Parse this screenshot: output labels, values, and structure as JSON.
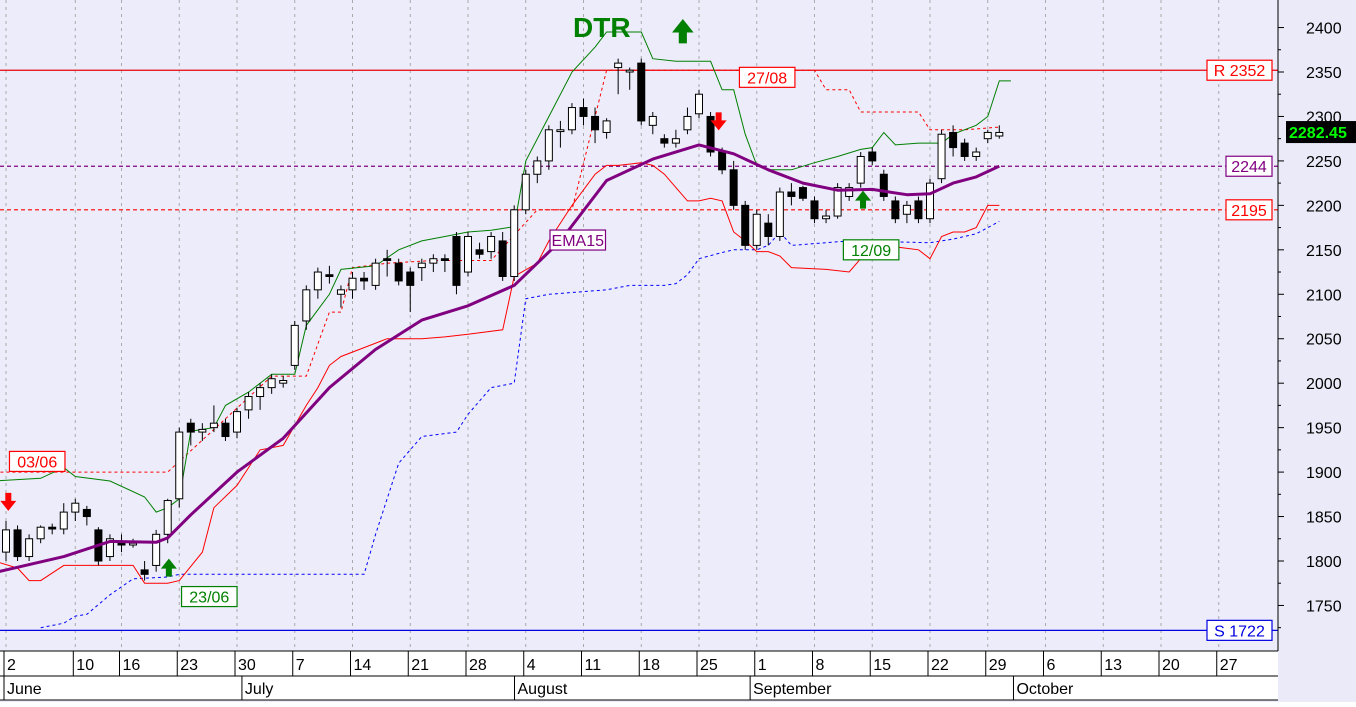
{
  "colors": {
    "plot_bg": "#ececfa",
    "axis_bg": "#eaeaf8",
    "resistance": "#e8000a",
    "support": "#0000e0",
    "ema": "#800080",
    "upper_channel": "#008000",
    "lower_channel": "#ff0000",
    "stop_blue": "#0000ff",
    "grid": "#aaaaaa",
    "last_price_bg": "#000000",
    "last_price_fg": "#00ff00"
  },
  "chart_data": {
    "type": "candlestick",
    "title": "DTR",
    "ylim": [
      1705,
      2432
    ],
    "yticks": [
      1750,
      1800,
      1850,
      1900,
      1950,
      2000,
      2050,
      2100,
      2150,
      2200,
      2250,
      2300,
      2350,
      2400
    ],
    "x_day_labels": [
      {
        "label": "2",
        "i": 0
      },
      {
        "label": "10",
        "i": 6
      },
      {
        "label": "16",
        "i": 10
      },
      {
        "label": "23",
        "i": 15
      },
      {
        "label": "30",
        "i": 20
      },
      {
        "label": "7",
        "i": 25
      },
      {
        "label": "14",
        "i": 30
      },
      {
        "label": "21",
        "i": 35
      },
      {
        "label": "28",
        "i": 40
      },
      {
        "label": "4",
        "i": 45
      },
      {
        "label": "11",
        "i": 50
      },
      {
        "label": "18",
        "i": 55
      },
      {
        "label": "25",
        "i": 60
      },
      {
        "label": "1",
        "i": 65
      },
      {
        "label": "8",
        "i": 70
      },
      {
        "label": "15",
        "i": 75
      },
      {
        "label": "22",
        "i": 80
      },
      {
        "label": "29",
        "i": 85
      },
      {
        "label": "6",
        "i": 90
      },
      {
        "label": "13",
        "i": 95
      },
      {
        "label": "20",
        "i": 100
      },
      {
        "label": "27",
        "i": 105
      }
    ],
    "x_month_labels": [
      {
        "label": "June",
        "i": 0
      },
      {
        "label": "July",
        "i": 20.6
      },
      {
        "label": "August",
        "i": 44.2
      },
      {
        "label": "September",
        "i": 64.6
      },
      {
        "label": "October",
        "i": 87.4
      }
    ],
    "candles": [
      [
        1810,
        1845,
        1800,
        1835
      ],
      [
        1835,
        1840,
        1800,
        1805
      ],
      [
        1805,
        1830,
        1800,
        1825
      ],
      [
        1825,
        1840,
        1820,
        1838
      ],
      [
        1838,
        1842,
        1830,
        1836
      ],
      [
        1836,
        1865,
        1830,
        1855
      ],
      [
        1855,
        1870,
        1845,
        1865
      ],
      [
        1858,
        1862,
        1840,
        1850
      ],
      [
        1835,
        1838,
        1795,
        1800
      ],
      [
        1805,
        1830,
        1800,
        1825
      ],
      [
        1822,
        1830,
        1810,
        1818
      ],
      [
        1818,
        1825,
        1815,
        1820
      ],
      [
        1790,
        1800,
        1778,
        1785
      ],
      [
        1795,
        1835,
        1788,
        1830
      ],
      [
        1830,
        1870,
        1820,
        1868
      ],
      [
        1870,
        1950,
        1860,
        1945
      ],
      [
        1955,
        1960,
        1930,
        1945
      ],
      [
        1945,
        1955,
        1935,
        1948
      ],
      [
        1950,
        1975,
        1945,
        1955
      ],
      [
        1955,
        1960,
        1935,
        1940
      ],
      [
        1945,
        1972,
        1938,
        1968
      ],
      [
        1970,
        1990,
        1960,
        1985
      ],
      [
        1985,
        2000,
        1970,
        1995
      ],
      [
        1995,
        2010,
        1988,
        2005
      ],
      [
        2000,
        2008,
        1995,
        2003
      ],
      [
        2020,
        2070,
        2015,
        2065
      ],
      [
        2070,
        2110,
        2060,
        2105
      ],
      [
        2105,
        2130,
        2095,
        2125
      ],
      [
        2122,
        2132,
        2112,
        2120
      ],
      [
        2100,
        2110,
        2085,
        2105
      ],
      [
        2105,
        2125,
        2095,
        2118
      ],
      [
        2118,
        2125,
        2105,
        2115
      ],
      [
        2110,
        2140,
        2105,
        2135
      ],
      [
        2140,
        2150,
        2120,
        2138
      ],
      [
        2135,
        2140,
        2110,
        2115
      ],
      [
        2125,
        2130,
        2080,
        2110
      ],
      [
        2130,
        2140,
        2115,
        2135
      ],
      [
        2135,
        2145,
        2125,
        2140
      ],
      [
        2140,
        2145,
        2125,
        2138
      ],
      [
        2165,
        2170,
        2100,
        2110
      ],
      [
        2125,
        2170,
        2120,
        2165
      ],
      [
        2150,
        2158,
        2140,
        2145
      ],
      [
        2148,
        2170,
        2140,
        2165
      ],
      [
        2160,
        2170,
        2115,
        2120
      ],
      [
        2120,
        2200,
        2115,
        2195
      ],
      [
        2195,
        2240,
        2190,
        2235
      ],
      [
        2235,
        2255,
        2225,
        2250
      ],
      [
        2250,
        2290,
        2240,
        2285
      ],
      [
        2283,
        2295,
        2265,
        2285
      ],
      [
        2285,
        2315,
        2280,
        2310
      ],
      [
        2310,
        2320,
        2290,
        2300
      ],
      [
        2300,
        2310,
        2270,
        2285
      ],
      [
        2282,
        2298,
        2275,
        2295
      ],
      [
        2355,
        2365,
        2325,
        2360
      ],
      [
        2350,
        2355,
        2330,
        2352
      ],
      [
        2360,
        2365,
        2290,
        2295
      ],
      [
        2290,
        2305,
        2280,
        2300
      ],
      [
        2275,
        2280,
        2265,
        2270
      ],
      [
        2270,
        2285,
        2265,
        2275
      ],
      [
        2285,
        2310,
        2280,
        2300
      ],
      [
        2303,
        2330,
        2298,
        2325
      ],
      [
        2300,
        2305,
        2255,
        2260
      ],
      [
        2260,
        2265,
        2235,
        2240
      ],
      [
        2240,
        2250,
        2195,
        2200
      ],
      [
        2200,
        2205,
        2150,
        2155
      ],
      [
        2155,
        2195,
        2150,
        2190
      ],
      [
        2180,
        2190,
        2155,
        2165
      ],
      [
        2165,
        2220,
        2160,
        2215
      ],
      [
        2215,
        2225,
        2200,
        2210
      ],
      [
        2220,
        2222,
        2205,
        2208
      ],
      [
        2205,
        2210,
        2180,
        2185
      ],
      [
        2185,
        2195,
        2180,
        2188
      ],
      [
        2188,
        2225,
        2185,
        2220
      ],
      [
        2210,
        2225,
        2205,
        2220
      ],
      [
        2225,
        2260,
        2220,
        2255
      ],
      [
        2260,
        2265,
        2245,
        2250
      ],
      [
        2235,
        2240,
        2205,
        2210
      ],
      [
        2205,
        2210,
        2180,
        2185
      ],
      [
        2190,
        2205,
        2180,
        2200
      ],
      [
        2205,
        2210,
        2180,
        2185
      ],
      [
        2185,
        2230,
        2180,
        2225
      ],
      [
        2230,
        2285,
        2225,
        2280
      ],
      [
        2282,
        2290,
        2255,
        2265
      ],
      [
        2270,
        2275,
        2250,
        2255
      ],
      [
        2255,
        2265,
        2250,
        2260
      ],
      [
        2275,
        2285,
        2270,
        2282
      ],
      [
        2278,
        2290,
        2275,
        2282
      ]
    ],
    "ema15": [
      [
        -1,
        1787
      ],
      [
        0,
        1790
      ],
      [
        5,
        1805
      ],
      [
        9,
        1822
      ],
      [
        13,
        1821
      ],
      [
        14,
        1826
      ],
      [
        16,
        1852
      ],
      [
        20,
        1900
      ],
      [
        24,
        1938
      ],
      [
        28,
        1995
      ],
      [
        32,
        2038
      ],
      [
        36,
        2071
      ],
      [
        40,
        2087
      ],
      [
        44,
        2110
      ],
      [
        48,
        2160
      ],
      [
        52,
        2228
      ],
      [
        56,
        2252
      ],
      [
        60,
        2268
      ],
      [
        63,
        2258
      ],
      [
        66,
        2240
      ],
      [
        69,
        2225
      ],
      [
        72,
        2217
      ],
      [
        75,
        2218
      ],
      [
        78,
        2212
      ],
      [
        80,
        2213
      ],
      [
        82,
        2225
      ],
      [
        84,
        2232
      ],
      [
        86,
        2244
      ]
    ],
    "upper_channel": [
      [
        -1,
        1890
      ],
      [
        3,
        1893
      ],
      [
        5,
        1905
      ],
      [
        6,
        1895
      ],
      [
        9,
        1890
      ],
      [
        12,
        1872
      ],
      [
        13,
        1855
      ],
      [
        14,
        1860
      ],
      [
        15,
        1870
      ],
      [
        16,
        1946
      ],
      [
        18,
        1950
      ],
      [
        19,
        1975
      ],
      [
        21,
        1990
      ],
      [
        23,
        2010
      ],
      [
        25,
        2010
      ],
      [
        26,
        2065
      ],
      [
        28,
        2100
      ],
      [
        29,
        2128
      ],
      [
        32,
        2132
      ],
      [
        34,
        2150
      ],
      [
        36,
        2160
      ],
      [
        38,
        2165
      ],
      [
        40,
        2170
      ],
      [
        42,
        2172
      ],
      [
        44,
        2176
      ],
      [
        45,
        2250
      ],
      [
        47,
        2300
      ],
      [
        49,
        2350
      ],
      [
        51,
        2378
      ],
      [
        52,
        2395
      ],
      [
        53,
        2395
      ],
      [
        55,
        2395
      ],
      [
        56,
        2365
      ],
      [
        58,
        2362
      ],
      [
        61,
        2362
      ],
      [
        62,
        2330
      ],
      [
        63,
        2330
      ],
      [
        64,
        2280
      ],
      [
        65,
        2245
      ],
      [
        66,
        2240
      ],
      [
        68,
        2240
      ],
      [
        70,
        2248
      ],
      [
        72,
        2255
      ],
      [
        74,
        2263
      ],
      [
        75,
        2265
      ],
      [
        76,
        2282
      ],
      [
        77,
        2268
      ],
      [
        79,
        2270
      ],
      [
        81,
        2270
      ],
      [
        82,
        2280
      ],
      [
        84,
        2290
      ],
      [
        85,
        2300
      ],
      [
        86,
        2340
      ],
      [
        87,
        2340
      ]
    ],
    "lower_channel": [
      [
        -1,
        1800
      ],
      [
        1,
        1792
      ],
      [
        2,
        1778
      ],
      [
        3,
        1778
      ],
      [
        5,
        1795
      ],
      [
        8,
        1795
      ],
      [
        10,
        1795
      ],
      [
        11,
        1795
      ],
      [
        12,
        1775
      ],
      [
        14,
        1775
      ],
      [
        15,
        1778
      ],
      [
        17,
        1810
      ],
      [
        18,
        1860
      ],
      [
        20,
        1885
      ],
      [
        22,
        1925
      ],
      [
        24,
        1930
      ],
      [
        26,
        1975
      ],
      [
        27,
        1995
      ],
      [
        28,
        2020
      ],
      [
        29,
        2030
      ],
      [
        31,
        2040
      ],
      [
        33,
        2050
      ],
      [
        36,
        2050
      ],
      [
        38,
        2052
      ],
      [
        40,
        2055
      ],
      [
        43,
        2060
      ],
      [
        44,
        2120
      ],
      [
        46,
        2135
      ],
      [
        47,
        2160
      ],
      [
        48,
        2180
      ],
      [
        49,
        2200
      ],
      [
        51,
        2235
      ],
      [
        52,
        2245
      ],
      [
        53,
        2245
      ],
      [
        55,
        2248
      ],
      [
        56,
        2245
      ],
      [
        57,
        2235
      ],
      [
        58,
        2220
      ],
      [
        59,
        2205
      ],
      [
        60,
        2205
      ],
      [
        61,
        2208
      ],
      [
        62,
        2205
      ],
      [
        63,
        2170
      ],
      [
        64,
        2160
      ],
      [
        65,
        2148
      ],
      [
        66,
        2148
      ],
      [
        67,
        2143
      ],
      [
        68,
        2130
      ],
      [
        71,
        2128
      ],
      [
        73,
        2125
      ],
      [
        74,
        2140
      ],
      [
        76,
        2155
      ],
      [
        79,
        2150
      ],
      [
        80,
        2140
      ],
      [
        81,
        2165
      ],
      [
        82,
        2170
      ],
      [
        83,
        2170
      ],
      [
        84,
        2175
      ],
      [
        85,
        2200
      ],
      [
        86,
        2200
      ]
    ],
    "blue_stop": [
      [
        3,
        1725
      ],
      [
        5,
        1730
      ],
      [
        6,
        1738
      ],
      [
        7,
        1740
      ],
      [
        9,
        1762
      ],
      [
        11,
        1780
      ],
      [
        14,
        1782
      ],
      [
        15,
        1785
      ],
      [
        16,
        1785
      ],
      [
        28,
        1785
      ],
      [
        29,
        1785
      ],
      [
        30,
        1785
      ],
      [
        31,
        1785
      ],
      [
        32,
        1830
      ],
      [
        34,
        1910
      ],
      [
        36,
        1940
      ],
      [
        39,
        1945
      ],
      [
        40,
        1965
      ],
      [
        42,
        1995
      ],
      [
        44,
        2000
      ],
      [
        45,
        2095
      ],
      [
        47,
        2100
      ],
      [
        52,
        2105
      ],
      [
        54,
        2110
      ],
      [
        57,
        2110
      ],
      [
        58,
        2112
      ],
      [
        59,
        2122
      ],
      [
        60,
        2140
      ],
      [
        62,
        2147
      ],
      [
        63,
        2150
      ],
      [
        65,
        2150
      ],
      [
        66,
        2155
      ],
      [
        67,
        2170
      ],
      [
        68,
        2155
      ],
      [
        73,
        2160
      ],
      [
        80,
        2158
      ],
      [
        82,
        2162
      ],
      [
        84,
        2168
      ],
      [
        85,
        2175
      ],
      [
        86,
        2182
      ]
    ],
    "red_dashed": [
      [
        -1,
        1900
      ],
      [
        14,
        1900
      ],
      [
        23,
        2008
      ],
      [
        26,
        2008
      ],
      [
        28,
        2080
      ],
      [
        29,
        2080
      ],
      [
        30,
        2130
      ],
      [
        33,
        2135
      ],
      [
        37,
        2138
      ],
      [
        42,
        2138
      ],
      [
        46,
        2195
      ],
      [
        49,
        2195
      ],
      [
        52,
        2352
      ],
      [
        64,
        2352
      ],
      [
        70,
        2352
      ],
      [
        71,
        2330
      ],
      [
        73,
        2330
      ],
      [
        74,
        2305
      ],
      [
        79,
        2305
      ],
      [
        80,
        2285
      ],
      [
        83,
        2285
      ],
      [
        86,
        2288
      ]
    ],
    "levels": {
      "resistance": {
        "value": 2352,
        "label": "R 2352"
      },
      "support": {
        "value": 1722,
        "label": "S 1722"
      },
      "ema_level": {
        "value": 2244,
        "label": "2244"
      },
      "red_level": {
        "value": 2195,
        "label": "2195"
      }
    },
    "last_price": {
      "value": 2282.45,
      "label": "2282.45"
    },
    "annotations": [
      {
        "label": "03/06",
        "i": 0.3,
        "value": 1912,
        "color": "red"
      },
      {
        "label": "23/06",
        "i": 15.2,
        "value": 1760,
        "color": "green"
      },
      {
        "label": "27/08",
        "i": 63.5,
        "value": 2344,
        "color": "red"
      },
      {
        "label": "12/09",
        "i": 72.5,
        "value": 2150,
        "color": "green"
      },
      {
        "label": "EMA15",
        "i": 47.1,
        "value": 2161,
        "color": "purple"
      }
    ],
    "arrows": [
      {
        "dir": "down",
        "i": 0.2,
        "value": 1862,
        "color": "red"
      },
      {
        "dir": "up",
        "i": 14.1,
        "value": 1797,
        "color": "green"
      },
      {
        "dir": "down",
        "i": 61.7,
        "value": 2290,
        "color": "red"
      },
      {
        "dir": "up",
        "i": 74.2,
        "value": 2211,
        "color": "green"
      },
      {
        "dir": "up",
        "i": 58.6,
        "value": 2402,
        "color": "green",
        "style": "title"
      }
    ],
    "grid": true
  }
}
